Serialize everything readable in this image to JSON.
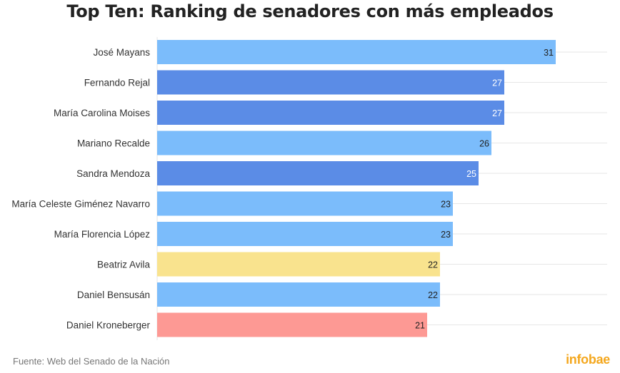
{
  "title": "Top Ten: Ranking de senadores con más empleados",
  "source": "Fuente: Web del Senado de la Nación",
  "brand": "infobae",
  "colors": {
    "light_blue": "#7bbcfb",
    "dark_blue": "#5b8ce6",
    "yellow": "#f9e38e",
    "red": "#fd9994",
    "grid": "#e6e6e6",
    "brand": "#f4a71d"
  },
  "chart_data": {
    "type": "bar",
    "orientation": "horizontal",
    "title": "Top Ten: Ranking de senadores con más empleados",
    "xlabel": "",
    "ylabel": "",
    "xlim": [
      0,
      35
    ],
    "grid": true,
    "categories": [
      "José Mayans",
      "Fernando Rejal",
      "María Carolina Moises",
      "Mariano Recalde",
      "Sandra Mendoza",
      "María Celeste Giménez Navarro",
      "María Florencia López",
      "Beatriz Avila",
      "Daniel Bensusán",
      "Daniel Kroneberger"
    ],
    "values": [
      31,
      27,
      27,
      26,
      25,
      23,
      23,
      22,
      22,
      21
    ],
    "bar_colors": [
      "light_blue",
      "dark_blue",
      "dark_blue",
      "light_blue",
      "dark_blue",
      "light_blue",
      "light_blue",
      "yellow",
      "light_blue",
      "red"
    ]
  }
}
